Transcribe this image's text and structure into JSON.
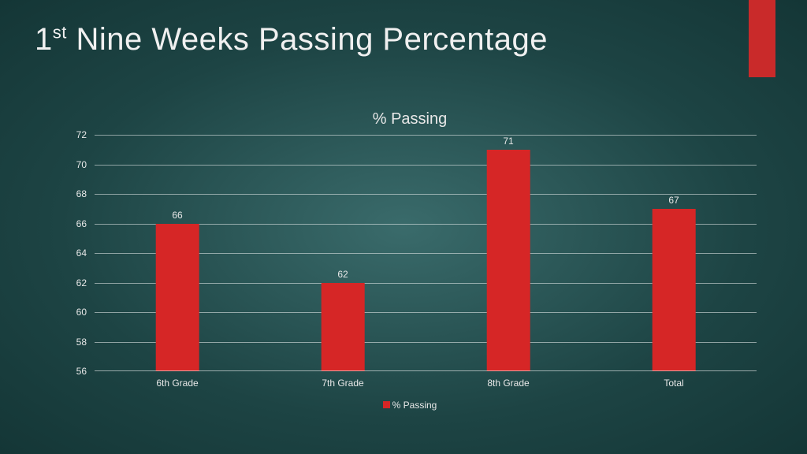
{
  "slide": {
    "title_prefix": "1",
    "title_super": "st",
    "title_rest": " Nine Weeks Passing Percentage"
  },
  "accent_color": "#c92a2a",
  "chart": {
    "type": "bar",
    "title": "% Passing",
    "categories": [
      "6th Grade",
      "7th Grade",
      "8th Grade",
      "Total"
    ],
    "values": [
      66,
      62,
      71,
      67
    ],
    "bar_color": "#d62626",
    "bar_width_pct": 26,
    "ylim": [
      56,
      72
    ],
    "ytick_step": 2,
    "yticks": [
      56,
      58,
      60,
      62,
      64,
      66,
      68,
      70,
      72
    ],
    "grid_color": "rgba(255,255,255,0.5)",
    "background_color": "transparent",
    "title_fontsize": 20,
    "label_fontsize": 12,
    "tick_fontsize": 12,
    "legend": {
      "label": "% Passing",
      "swatch_color": "#d62626"
    }
  }
}
